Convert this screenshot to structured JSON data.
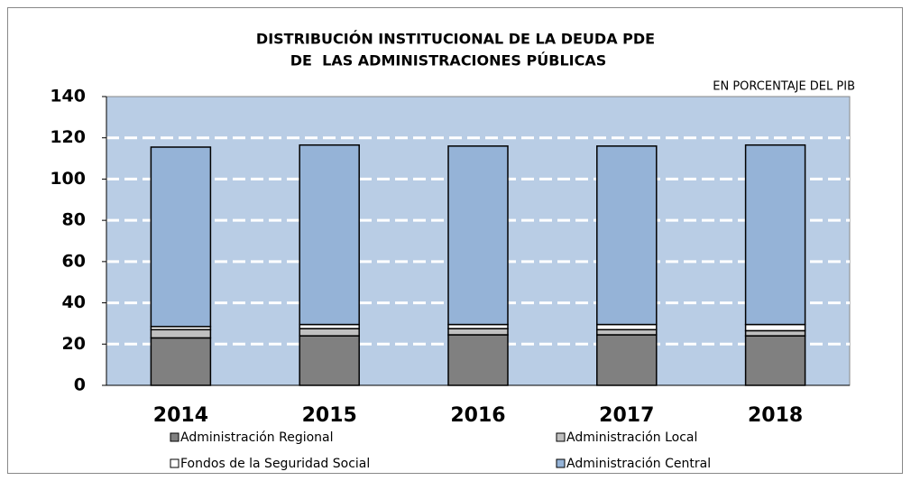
{
  "chart_data": {
    "type": "bar",
    "stacked": true,
    "title": [
      "DISTRIBUCIÓN INSTITUCIONAL DE LA DEUDA PDE",
      "DE  LAS ADMINISTRACIONES PÚBLICAS"
    ],
    "annotation": "EN PORCENTAJE DEL PIB",
    "categories": [
      "2014",
      "2015",
      "2016",
      "2017",
      "2018"
    ],
    "series": [
      {
        "name": "Administración Regional",
        "color": "#808080",
        "values": [
          23,
          24,
          24.5,
          24.5,
          24
        ]
      },
      {
        "name": "Administración Local",
        "color": "#c0c0c0",
        "values": [
          4,
          3.5,
          3,
          2.5,
          2.5
        ]
      },
      {
        "name": "Fondos de la Seguridad Social",
        "color": "#ffffff",
        "values": [
          1.5,
          2,
          2,
          2.5,
          3
        ]
      },
      {
        "name": "Administración Central",
        "color": "#95b3d7",
        "values": [
          87,
          87,
          86.5,
          86.5,
          87
        ]
      }
    ],
    "ylim": [
      0,
      140
    ],
    "yticks": [
      0,
      20,
      40,
      60,
      80,
      100,
      120,
      140
    ],
    "grid": true,
    "plot_background": "#b9cde5"
  }
}
